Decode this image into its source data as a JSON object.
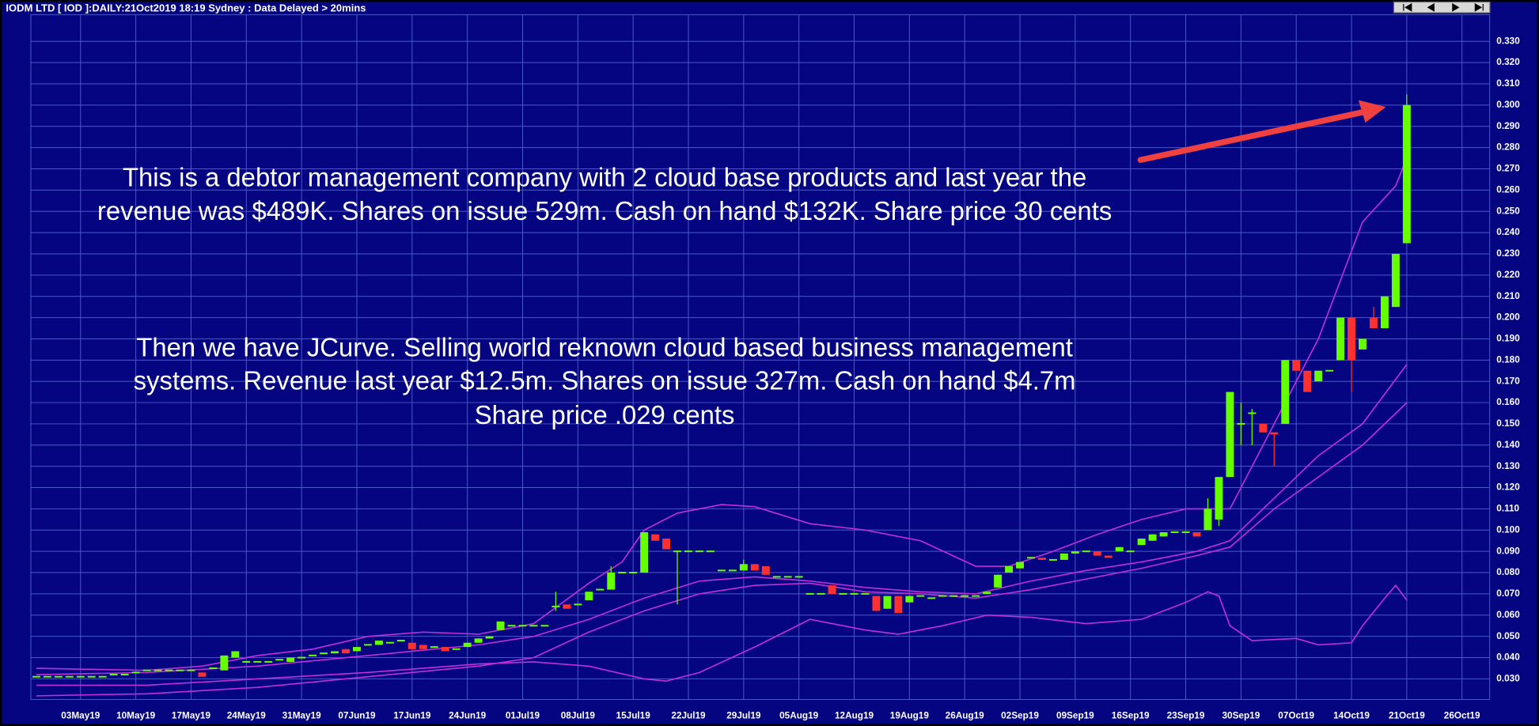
{
  "chart_data": {
    "type": "candlestick",
    "title": "IODM LTD [ IOD ]:DAILY:21Oct2019 18:19 Sydney : Data Delayed > 20mins",
    "annotations": [
      "This is a debtor management company with 2 cloud base products  and last year the",
      "revenue was $489K. Shares on issue 529m. Cash on hand $132K. Share price 30 cents",
      "Then we have JCurve. Selling world reknown cloud based business management",
      "systems. Revenue last year $12.5m. Shares on issue 327m. Cash on hand $4.7m",
      "Share price .029 cents"
    ],
    "categories": [
      null,
      null,
      null,
      null,
      "03May19",
      null,
      null,
      null,
      null,
      "10May19",
      null,
      null,
      null,
      null,
      "17May19",
      null,
      null,
      null,
      null,
      "24May19",
      null,
      null,
      null,
      null,
      "31May19",
      null,
      null,
      null,
      null,
      "07Jun19",
      null,
      null,
      null,
      null,
      "17Jun19",
      null,
      null,
      null,
      null,
      "24Jun19",
      null,
      null,
      null,
      null,
      "01Jul19",
      null,
      null,
      null,
      null,
      "08Jul19",
      null,
      null,
      null,
      null,
      "15Jul19",
      null,
      null,
      null,
      null,
      "22Jul19",
      null,
      null,
      null,
      null,
      "29Jul19",
      null,
      null,
      null,
      null,
      "05Aug19",
      null,
      null,
      null,
      null,
      "12Aug19",
      null,
      null,
      null,
      null,
      "19Aug19",
      null,
      null,
      null,
      null,
      "26Aug19",
      null,
      null,
      null,
      null,
      "02Sep19",
      null,
      null,
      null,
      null,
      "09Sep19",
      null,
      null,
      null,
      null,
      "16Sep19",
      null,
      null,
      null,
      null,
      "23Sep19",
      null,
      null,
      null,
      null,
      "30Sep19",
      null,
      null,
      null,
      null,
      "07Oct19",
      null,
      null,
      null,
      null,
      "14Oct19",
      null,
      null,
      null,
      null,
      "21Oct19",
      null,
      null,
      null,
      null,
      "26Oct19",
      null,
      null
    ],
    "open": [
      0.031,
      0.031,
      0.031,
      0.031,
      0.031,
      0.031,
      0.031,
      0.032,
      0.032,
      0.033,
      0.034,
      0.034,
      0.034,
      0.034,
      0.034,
      0.033,
      0.035,
      0.034,
      0.04,
      0.038,
      0.038,
      0.038,
      0.039,
      0.038,
      0.04,
      0.041,
      0.042,
      0.042,
      0.044,
      0.043,
      0.046,
      0.046,
      0.047,
      0.048,
      0.047,
      0.046,
      0.045,
      0.045,
      0.044,
      0.045,
      0.047,
      0.049,
      0.053,
      0.055,
      0.055,
      0.055,
      0.055,
      0.064,
      0.065,
      0.065,
      0.067,
      0.072,
      0.072,
      0.08,
      0.08,
      0.08,
      0.098,
      0.096,
      0.09,
      0.09,
      0.09,
      0.09,
      0.081,
      0.081,
      0.081,
      0.084,
      0.083,
      0.078,
      0.078,
      0.078,
      0.07,
      0.07,
      0.074,
      0.07,
      0.07,
      0.07,
      0.069,
      0.063,
      0.069,
      0.066,
      0.069,
      0.068,
      0.069,
      0.069,
      0.069,
      0.069,
      0.07,
      0.073,
      0.08,
      0.082,
      0.087,
      0.087,
      0.086,
      0.086,
      0.089,
      0.09,
      0.09,
      0.088,
      0.09,
      0.09,
      0.093,
      0.095,
      0.097,
      0.099,
      0.099,
      0.099,
      0.1,
      0.105,
      0.125,
      0.15,
      0.155,
      0.15,
      0.146,
      0.15,
      0.18,
      0.175,
      0.17,
      0.175,
      0.18,
      0.2,
      0.185,
      0.2,
      0.195,
      0.205,
      0.235,
      null,
      null,
      null,
      null,
      null,
      null,
      null
    ],
    "high": [
      0.031,
      0.031,
      0.031,
      0.031,
      0.031,
      0.031,
      0.031,
      0.032,
      0.032,
      0.033,
      0.034,
      0.034,
      0.034,
      0.034,
      0.034,
      0.033,
      0.035,
      0.041,
      0.043,
      0.038,
      0.038,
      0.038,
      0.039,
      0.04,
      0.04,
      0.041,
      0.042,
      0.043,
      0.044,
      0.045,
      0.046,
      0.048,
      0.047,
      0.048,
      0.047,
      0.046,
      0.045,
      0.045,
      0.044,
      0.047,
      0.049,
      0.05,
      0.057,
      0.055,
      0.055,
      0.055,
      0.055,
      0.071,
      0.065,
      0.065,
      0.071,
      0.072,
      0.083,
      0.08,
      0.08,
      0.099,
      0.098,
      0.096,
      0.09,
      0.09,
      0.09,
      0.09,
      0.081,
      0.081,
      0.086,
      0.084,
      0.083,
      0.078,
      0.078,
      0.078,
      0.07,
      0.07,
      0.074,
      0.07,
      0.07,
      0.07,
      0.069,
      0.069,
      0.069,
      0.069,
      0.069,
      0.068,
      0.069,
      0.069,
      0.069,
      0.069,
      0.071,
      0.079,
      0.083,
      0.085,
      0.087,
      0.087,
      0.086,
      0.089,
      0.09,
      0.09,
      0.09,
      0.088,
      0.092,
      0.09,
      0.096,
      0.098,
      0.099,
      0.099,
      0.099,
      0.099,
      0.115,
      0.125,
      0.165,
      0.16,
      0.157,
      0.15,
      0.146,
      0.18,
      0.18,
      0.175,
      0.175,
      0.175,
      0.2,
      0.2,
      0.19,
      0.205,
      0.21,
      0.23,
      0.305,
      null,
      null,
      null,
      null,
      null,
      null,
      null
    ],
    "low": [
      0.031,
      0.031,
      0.031,
      0.031,
      0.031,
      0.031,
      0.031,
      0.032,
      0.032,
      0.033,
      0.034,
      0.034,
      0.034,
      0.034,
      0.034,
      0.031,
      0.035,
      0.034,
      0.04,
      0.038,
      0.038,
      0.038,
      0.039,
      0.038,
      0.04,
      0.041,
      0.042,
      0.042,
      0.042,
      0.043,
      0.046,
      0.046,
      0.047,
      0.048,
      0.044,
      0.044,
      0.045,
      0.043,
      0.044,
      0.045,
      0.047,
      0.049,
      0.053,
      0.055,
      0.055,
      0.055,
      0.055,
      0.062,
      0.063,
      0.065,
      0.067,
      0.072,
      0.072,
      0.08,
      0.08,
      0.08,
      0.095,
      0.091,
      0.065,
      0.09,
      0.09,
      0.09,
      0.081,
      0.081,
      0.081,
      0.081,
      0.079,
      0.078,
      0.078,
      0.078,
      0.07,
      0.07,
      0.07,
      0.07,
      0.07,
      0.07,
      0.062,
      0.063,
      0.061,
      0.066,
      0.069,
      0.068,
      0.069,
      0.069,
      0.069,
      0.069,
      0.07,
      0.073,
      0.08,
      0.082,
      0.087,
      0.086,
      0.086,
      0.086,
      0.089,
      0.09,
      0.088,
      0.087,
      0.09,
      0.09,
      0.093,
      0.095,
      0.097,
      0.099,
      0.099,
      0.097,
      0.1,
      0.102,
      0.125,
      0.14,
      0.14,
      0.146,
      0.13,
      0.15,
      0.175,
      0.165,
      0.17,
      0.175,
      0.18,
      0.165,
      0.185,
      0.195,
      0.195,
      0.205,
      0.235,
      null,
      null,
      null,
      null,
      null,
      null,
      null
    ],
    "close": [
      0.031,
      0.031,
      0.031,
      0.031,
      0.031,
      0.031,
      0.031,
      0.032,
      0.032,
      0.033,
      0.034,
      0.034,
      0.034,
      0.034,
      0.034,
      0.031,
      0.035,
      0.041,
      0.043,
      0.038,
      0.038,
      0.038,
      0.039,
      0.04,
      0.04,
      0.041,
      0.042,
      0.043,
      0.042,
      0.045,
      0.046,
      0.048,
      0.047,
      0.048,
      0.044,
      0.044,
      0.045,
      0.043,
      0.044,
      0.047,
      0.049,
      0.05,
      0.057,
      0.055,
      0.055,
      0.055,
      0.055,
      0.064,
      0.063,
      0.065,
      0.071,
      0.072,
      0.08,
      0.08,
      0.08,
      0.099,
      0.095,
      0.091,
      0.09,
      0.09,
      0.09,
      0.09,
      0.081,
      0.081,
      0.084,
      0.081,
      0.079,
      0.078,
      0.078,
      0.078,
      0.07,
      0.07,
      0.07,
      0.07,
      0.07,
      0.07,
      0.062,
      0.069,
      0.061,
      0.069,
      0.069,
      0.068,
      0.069,
      0.069,
      0.069,
      0.069,
      0.071,
      0.079,
      0.083,
      0.085,
      0.087,
      0.086,
      0.086,
      0.089,
      0.09,
      0.09,
      0.088,
      0.087,
      0.092,
      0.09,
      0.096,
      0.098,
      0.099,
      0.099,
      0.099,
      0.097,
      0.11,
      0.125,
      0.165,
      0.15,
      0.155,
      0.146,
      0.145,
      0.18,
      0.175,
      0.165,
      0.175,
      0.175,
      0.2,
      0.18,
      0.19,
      0.195,
      0.21,
      0.23,
      0.3,
      null,
      null,
      null,
      null,
      null,
      null,
      null
    ],
    "up_color": "#66ff00",
    "down_color": "#ff3030",
    "lines": [
      {
        "color": "#c030d8",
        "x": [
          0,
          10,
          15,
          20,
          25,
          30,
          35,
          40,
          45,
          50,
          53,
          55,
          58,
          62,
          65,
          70,
          75,
          80,
          85,
          88,
          92,
          96,
          100,
          104,
          108,
          112,
          116,
          120,
          123,
          124
        ],
        "values": [
          0.035,
          0.034,
          0.036,
          0.041,
          0.044,
          0.05,
          0.052,
          0.051,
          0.056,
          0.075,
          0.085,
          0.1,
          0.108,
          0.112,
          0.111,
          0.103,
          0.1,
          0.095,
          0.083,
          0.083,
          0.09,
          0.098,
          0.105,
          0.11,
          0.11,
          0.15,
          0.19,
          0.245,
          0.262,
          0.275
        ]
      },
      {
        "color": "#c030d8",
        "x": [
          0,
          10,
          20,
          30,
          40,
          45,
          50,
          55,
          60,
          65,
          70,
          75,
          80,
          85,
          90,
          95,
          100,
          105,
          108,
          112,
          116,
          120,
          124
        ],
        "values": [
          0.032,
          0.033,
          0.036,
          0.041,
          0.046,
          0.05,
          0.058,
          0.068,
          0.076,
          0.078,
          0.076,
          0.073,
          0.071,
          0.07,
          0.076,
          0.081,
          0.085,
          0.09,
          0.095,
          0.115,
          0.135,
          0.15,
          0.178
        ]
      },
      {
        "color": "#c030d8",
        "x": [
          0,
          10,
          20,
          30,
          40,
          45,
          50,
          55,
          57,
          60,
          65,
          70,
          75,
          78,
          82,
          86,
          90,
          95,
          100,
          104,
          106,
          107,
          108,
          110,
          114,
          116,
          119,
          120,
          122,
          123,
          124
        ],
        "values": [
          0.027,
          0.027,
          0.03,
          0.033,
          0.037,
          0.038,
          0.036,
          0.03,
          0.029,
          0.033,
          0.045,
          0.058,
          0.053,
          0.051,
          0.055,
          0.06,
          0.059,
          0.056,
          0.058,
          0.066,
          0.071,
          0.069,
          0.055,
          0.048,
          0.049,
          0.046,
          0.047,
          0.055,
          0.068,
          0.074,
          0.067
        ]
      },
      {
        "color": "#c030d8",
        "x": [
          0,
          10,
          20,
          30,
          40,
          45,
          50,
          55,
          60,
          65,
          70,
          75,
          80,
          85,
          90,
          95,
          100,
          105,
          108,
          112,
          116,
          120,
          124
        ],
        "values": [
          0.022,
          0.023,
          0.026,
          0.031,
          0.036,
          0.04,
          0.052,
          0.062,
          0.07,
          0.074,
          0.075,
          0.071,
          0.07,
          0.068,
          0.072,
          0.077,
          0.082,
          0.088,
          0.092,
          0.11,
          0.125,
          0.14,
          0.16
        ]
      }
    ],
    "ylim": [
      0.0203,
      0.3425
    ],
    "yticks": [
      {
        "value": 0.03,
        "label": "0.030"
      },
      {
        "value": 0.04,
        "label": "0.040"
      },
      {
        "value": 0.05,
        "label": "0.050"
      },
      {
        "value": 0.06,
        "label": "0.060"
      },
      {
        "value": 0.07,
        "label": "0.070"
      },
      {
        "value": 0.08,
        "label": "0.080"
      },
      {
        "value": 0.09,
        "label": "0.090"
      },
      {
        "value": 0.1,
        "label": "0.100"
      },
      {
        "value": 0.11,
        "label": "0.110"
      },
      {
        "value": 0.12,
        "label": "0.120"
      },
      {
        "value": 0.13,
        "label": "0.130"
      },
      {
        "value": 0.14,
        "label": "0.140"
      },
      {
        "value": 0.15,
        "label": "0.150"
      },
      {
        "value": 0.16,
        "label": "0.160"
      },
      {
        "value": 0.17,
        "label": "0.170"
      },
      {
        "value": 0.18,
        "label": "0.180"
      },
      {
        "value": 0.19,
        "label": "0.190"
      },
      {
        "value": 0.2,
        "label": "0.200"
      },
      {
        "value": 0.21,
        "label": "0.210"
      },
      {
        "value": 0.22,
        "label": "0.220"
      },
      {
        "value": 0.23,
        "label": "0.230"
      },
      {
        "value": 0.24,
        "label": "0.240"
      },
      {
        "value": 0.25,
        "label": "0.250"
      },
      {
        "value": 0.26,
        "label": "0.260"
      },
      {
        "value": 0.27,
        "label": "0.270"
      },
      {
        "value": 0.28,
        "label": "0.280"
      },
      {
        "value": 0.29,
        "label": "0.290"
      },
      {
        "value": 0.3,
        "label": "0.300"
      },
      {
        "value": 0.31,
        "label": "0.310"
      },
      {
        "value": 0.32,
        "label": "0.320"
      },
      {
        "value": 0.33,
        "label": "0.330"
      }
    ],
    "grid": true
  }
}
